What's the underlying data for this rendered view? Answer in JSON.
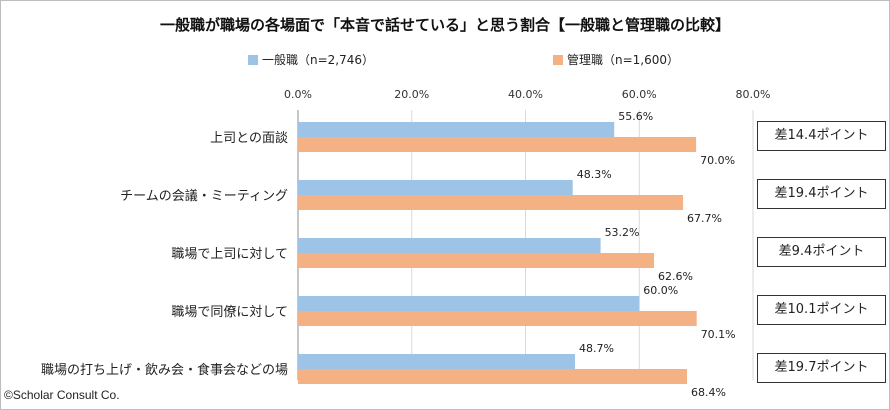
{
  "chart_data": {
    "type": "bar",
    "orientation": "horizontal",
    "title": "一般職が職場の各場面で「本音で話せている」と思う割合【一般職と管理職の比較】",
    "categories": [
      "上司との面談",
      "チームの会議・ミーティング",
      "職場で上司に対して",
      "職場で同僚に対して",
      "職場の打ち上げ・飲み会・食事会などの場"
    ],
    "series": [
      {
        "name": "一般職（n=2,746）",
        "color": "#9dc3e6",
        "values": [
          55.6,
          48.3,
          53.2,
          60.0,
          48.7
        ],
        "labels": [
          "55.6%",
          "48.3%",
          "53.2%",
          "60.0%",
          "48.7%"
        ]
      },
      {
        "name": "管理職（n=1,600）",
        "color": "#f4b183",
        "values": [
          70.0,
          67.7,
          62.6,
          70.1,
          68.4
        ],
        "labels": [
          "70.0%",
          "67.7%",
          "62.6%",
          "70.1%",
          "68.4%"
        ]
      }
    ],
    "xlim": [
      0,
      80
    ],
    "xticks": [
      "0.0%",
      "20.0%",
      "40.0%",
      "60.0%",
      "80.0%"
    ],
    "xtick_values": [
      0,
      20,
      40,
      60,
      80
    ],
    "grid": true,
    "legend_position": "top",
    "differences": [
      "差14.4ポイント",
      "差19.4ポイント",
      "差9.4ポイント",
      "差10.1ポイント",
      "差19.7ポイント"
    ]
  },
  "copyright": "©Scholar Consult Co."
}
